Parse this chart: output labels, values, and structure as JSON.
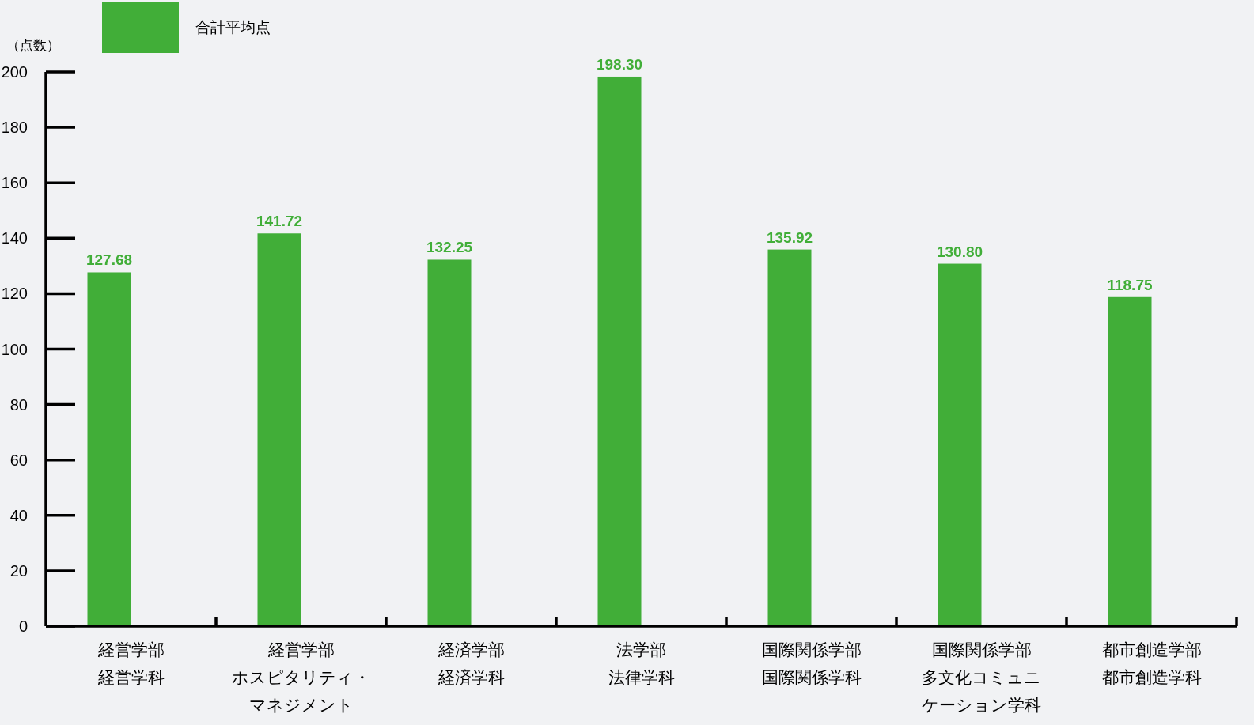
{
  "chart_data": {
    "type": "bar",
    "ylabel": "（点数）",
    "categories": [
      "経営学部経営学科",
      "経営学部ホスピタリティ・マネジメント",
      "経済学部経済学科",
      "法学部法律学科",
      "国際関係学部国際関係学科",
      "国際関係学部多文化コミュニケーション学科",
      "都市創造学部都市創造学科"
    ],
    "series": [
      {
        "name": "合計平均点",
        "color": "#41ae38",
        "values": [
          127.68,
          141.72,
          132.25,
          198.3,
          135.92,
          130.8,
          118.75
        ],
        "value_labels": [
          "127.68",
          "141.72",
          "132.25",
          "198.30",
          "135.92",
          "130.80",
          "118.75"
        ]
      }
    ],
    "ylim": [
      0,
      200
    ],
    "yticks": [
      0,
      20,
      40,
      60,
      80,
      100,
      120,
      140,
      160,
      180,
      200
    ],
    "legend": "top left"
  }
}
